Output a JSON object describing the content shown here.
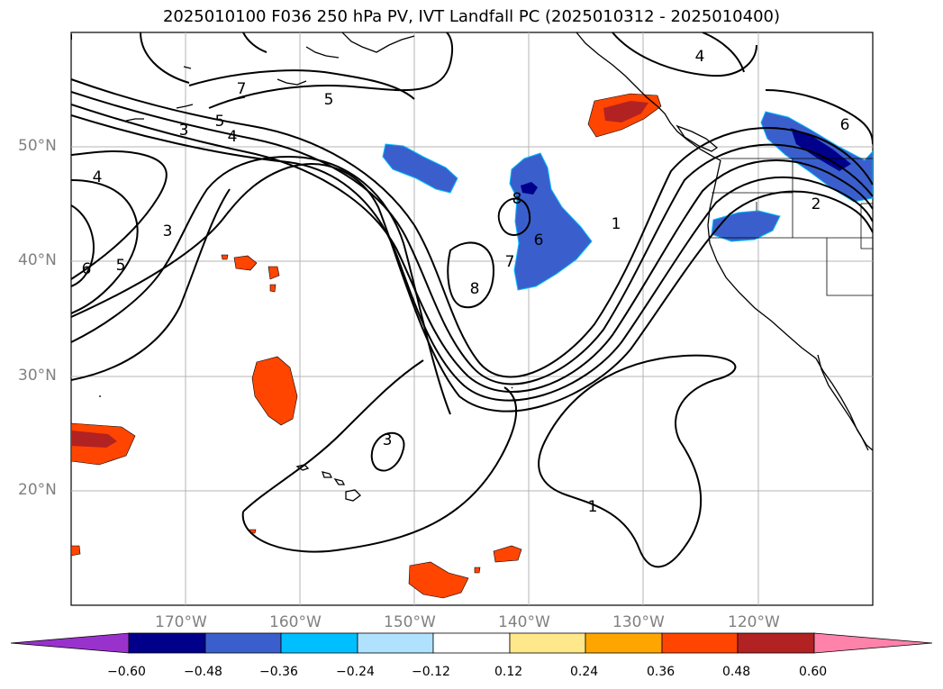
{
  "title": "2025010100 F036 250 hPa PV, IVT Landfall PC (2025010312 - 2025010400)",
  "lat_labels": [
    "50°N",
    "40°N",
    "30°N",
    "20°N"
  ],
  "lon_labels": [
    "170°W",
    "160°W",
    "150°W",
    "140°W",
    "130°W",
    "120°W"
  ],
  "contour_labels": [
    "7",
    "5",
    "5",
    "4",
    "3",
    "4",
    "3",
    "6",
    "5",
    "8",
    "6",
    "8",
    "7",
    "1",
    "3",
    "1",
    "4",
    "6",
    "2"
  ],
  "colorbar": {
    "ticks": [
      "−0.60",
      "−0.48",
      "−0.36",
      "−0.24",
      "−0.12",
      "0.12",
      "0.24",
      "0.36",
      "0.48",
      "0.60"
    ],
    "colors": [
      "#9932cc",
      "#00008b",
      "#3a5fcd",
      "#00bfff",
      "#b0e2ff",
      "#ffffff",
      "#ffe88a",
      "#ffa500",
      "#ff4500",
      "#b22222",
      "#ff82ab"
    ]
  },
  "colors": {
    "pos_orange": "#ff4500",
    "pos_dark": "#b22222",
    "neg_blue": "#3a5fcd",
    "neg_navy": "#00008b",
    "grid": "#b4b4b4"
  }
}
